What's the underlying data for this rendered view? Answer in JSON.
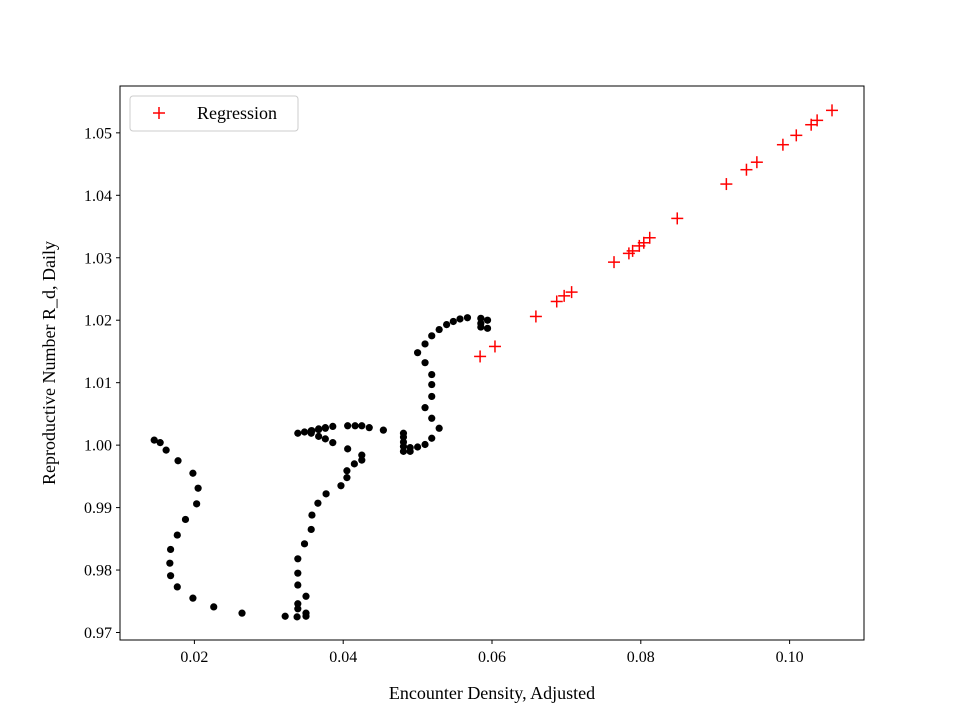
{
  "chart_data": {
    "type": "scatter",
    "title": "",
    "xlabel": "Encounter Density, Adjusted",
    "ylabel": "Reproductive Number R_d, Daily",
    "xlim": [
      0.01,
      0.11
    ],
    "ylim": [
      0.9688,
      1.0575
    ],
    "grid": false,
    "legend_position": "top-left",
    "xticks": [
      0.02,
      0.04,
      0.06,
      0.08,
      0.1
    ],
    "xtick_labels": [
      "0.02",
      "0.04",
      "0.06",
      "0.08",
      "0.10"
    ],
    "yticks": [
      0.97,
      0.98,
      0.99,
      1.0,
      1.01,
      1.02,
      1.03,
      1.04,
      1.05
    ],
    "ytick_labels": [
      "0.97",
      "0.98",
      "0.99",
      "1.00",
      "1.01",
      "1.02",
      "1.03",
      "1.04",
      "1.05"
    ],
    "series": [
      {
        "marker": "dot",
        "color": "#000000",
        "points": [
          [
            0.0146,
            1.0008
          ],
          [
            0.0154,
            1.0004
          ],
          [
            0.0162,
            0.9992
          ],
          [
            0.0178,
            0.9975
          ],
          [
            0.0198,
            0.9955
          ],
          [
            0.0205,
            0.9931
          ],
          [
            0.0203,
            0.9906
          ],
          [
            0.0188,
            0.9881
          ],
          [
            0.0177,
            0.9856
          ],
          [
            0.0168,
            0.9833
          ],
          [
            0.0167,
            0.9811
          ],
          [
            0.0168,
            0.9791
          ],
          [
            0.0177,
            0.9773
          ],
          [
            0.0198,
            0.9755
          ],
          [
            0.0226,
            0.9741
          ],
          [
            0.0264,
            0.9731
          ],
          [
            0.0322,
            0.9726
          ],
          [
            0.0338,
            0.9725
          ],
          [
            0.035,
            0.9726
          ],
          [
            0.035,
            0.9731
          ],
          [
            0.0339,
            0.9738
          ],
          [
            0.0339,
            0.9746
          ],
          [
            0.035,
            0.9758
          ],
          [
            0.0339,
            0.9776
          ],
          [
            0.0339,
            0.9795
          ],
          [
            0.0339,
            0.9818
          ],
          [
            0.0348,
            0.9842
          ],
          [
            0.0357,
            0.9865
          ],
          [
            0.0358,
            0.9888
          ],
          [
            0.0366,
            0.9907
          ],
          [
            0.0377,
            0.9922
          ],
          [
            0.0397,
            0.9935
          ],
          [
            0.0405,
            0.9948
          ],
          [
            0.0405,
            0.9959
          ],
          [
            0.0415,
            0.997
          ],
          [
            0.0425,
            0.9976
          ],
          [
            0.0425,
            0.9984
          ],
          [
            0.0406,
            0.9994
          ],
          [
            0.0386,
            1.0004
          ],
          [
            0.0376,
            1.001
          ],
          [
            0.0367,
            1.0014
          ],
          [
            0.0357,
            1.0019
          ],
          [
            0.0357,
            1.0023
          ],
          [
            0.0367,
            1.0025
          ],
          [
            0.0376,
            1.0028
          ],
          [
            0.0386,
            1.003
          ],
          [
            0.0406,
            1.0031
          ],
          [
            0.0416,
            1.0031
          ],
          [
            0.0425,
            1.0031
          ],
          [
            0.0435,
            1.0028
          ],
          [
            0.0454,
            1.0024
          ],
          [
            0.0339,
            1.0019
          ],
          [
            0.0348,
            1.0021
          ],
          [
            0.0358,
            1.0023
          ],
          [
            0.0367,
            1.0026
          ],
          [
            0.0376,
            1.0027
          ],
          [
            0.0481,
            1.0019
          ],
          [
            0.0481,
            1.0013
          ],
          [
            0.0481,
            1.0005
          ],
          [
            0.0481,
            0.9998
          ],
          [
            0.0481,
            0.999
          ],
          [
            0.049,
            0.999
          ],
          [
            0.049,
            0.9996
          ],
          [
            0.05,
            0.9997
          ],
          [
            0.051,
            1.0001
          ],
          [
            0.0519,
            1.0011
          ],
          [
            0.0529,
            1.0027
          ],
          [
            0.0519,
            1.0043
          ],
          [
            0.051,
            1.006
          ],
          [
            0.0519,
            1.0078
          ],
          [
            0.0519,
            1.0097
          ],
          [
            0.0519,
            1.0113
          ],
          [
            0.051,
            1.0132
          ],
          [
            0.05,
            1.0148
          ],
          [
            0.051,
            1.0162
          ],
          [
            0.0519,
            1.0175
          ],
          [
            0.0529,
            1.0185
          ],
          [
            0.0539,
            1.0193
          ],
          [
            0.0548,
            1.0198
          ],
          [
            0.0557,
            1.0202
          ],
          [
            0.0567,
            1.0204
          ],
          [
            0.0585,
            1.0203
          ],
          [
            0.0594,
            1.02
          ],
          [
            0.0585,
            1.0195
          ],
          [
            0.0585,
            1.0189
          ],
          [
            0.0594,
            1.0187
          ]
        ]
      },
      {
        "name": "Regression",
        "marker": "plus",
        "color": "#ff0000",
        "points": [
          [
            0.0584,
            1.0142
          ],
          [
            0.0604,
            1.0158
          ],
          [
            0.0659,
            1.0206
          ],
          [
            0.0687,
            1.023
          ],
          [
            0.0697,
            1.0239
          ],
          [
            0.0707,
            1.0245
          ],
          [
            0.0764,
            1.0293
          ],
          [
            0.0784,
            1.0307
          ],
          [
            0.0789,
            1.0311
          ],
          [
            0.0798,
            1.0319
          ],
          [
            0.0804,
            1.0324
          ],
          [
            0.0812,
            1.0332
          ],
          [
            0.0849,
            1.0363
          ],
          [
            0.0915,
            1.0418
          ],
          [
            0.0942,
            1.0441
          ],
          [
            0.0956,
            1.0453
          ],
          [
            0.0991,
            1.0481
          ],
          [
            0.1009,
            1.0496
          ],
          [
            0.1029,
            1.0513
          ],
          [
            0.1037,
            1.052
          ],
          [
            0.1057,
            1.0536
          ]
        ]
      }
    ]
  }
}
